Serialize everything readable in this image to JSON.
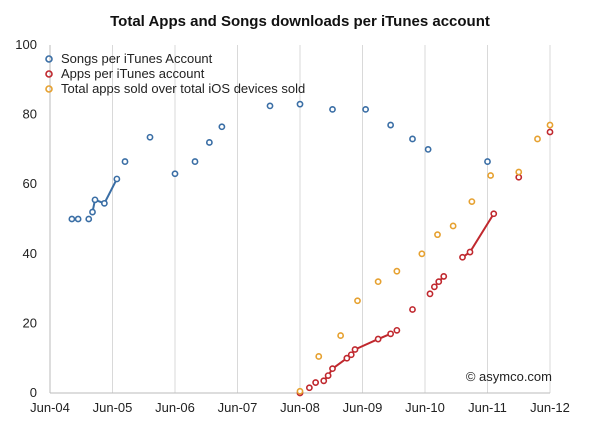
{
  "chart_data": {
    "type": "scatter",
    "title": "Total Apps and Songs downloads per iTunes account",
    "xlabel": "",
    "ylabel": "",
    "ylim": [
      0,
      100
    ],
    "yticks": [
      "0",
      "20",
      "40",
      "60",
      "80",
      "100"
    ],
    "xticks": [
      "Jun-04",
      "Jun-05",
      "Jun-06",
      "Jun-07",
      "Jun-08",
      "Jun-09",
      "Jun-10",
      "Jun-11",
      "Jun-12"
    ],
    "xlim": [
      2004.0,
      2012.0
    ],
    "grid": "vertical",
    "legend_position": "top-left",
    "annotation": "© asymco.com",
    "series": [
      {
        "name": "Songs per iTunes Account",
        "color": "#3a6ea5",
        "connected_segments": [
          [
            3,
            6
          ]
        ],
        "points": [
          [
            2004.35,
            50
          ],
          [
            2004.45,
            50
          ],
          [
            2004.62,
            50
          ],
          [
            2004.68,
            52
          ],
          [
            2004.72,
            55.5
          ],
          [
            2004.87,
            54.5
          ],
          [
            2005.07,
            61.5
          ],
          [
            2005.2,
            66.5
          ],
          [
            2005.6,
            73.5
          ],
          [
            2006.0,
            63
          ],
          [
            2006.32,
            66.5
          ],
          [
            2006.55,
            72
          ],
          [
            2006.75,
            76.5
          ],
          [
            2007.52,
            82.5
          ],
          [
            2008.0,
            83
          ],
          [
            2008.52,
            81.5
          ],
          [
            2009.05,
            81.5
          ],
          [
            2009.45,
            77
          ],
          [
            2009.8,
            73
          ],
          [
            2010.05,
            70
          ],
          [
            2011.0,
            66.5
          ]
        ]
      },
      {
        "name": "Apps per iTunes account",
        "color": "#c0282e",
        "connected_segments": [
          [
            3,
            6
          ],
          [
            8,
            10
          ],
          [
            14,
            16
          ],
          [
            17,
            19
          ]
        ],
        "points": [
          [
            2008.0,
            0
          ],
          [
            2008.15,
            1.5
          ],
          [
            2008.25,
            3
          ],
          [
            2008.38,
            3.5
          ],
          [
            2008.45,
            5
          ],
          [
            2008.52,
            7
          ],
          [
            2008.75,
            10
          ],
          [
            2008.82,
            11
          ],
          [
            2008.88,
            12.5
          ],
          [
            2009.25,
            15.5
          ],
          [
            2009.45,
            17
          ],
          [
            2009.55,
            18
          ],
          [
            2009.8,
            24
          ],
          [
            2010.08,
            28.5
          ],
          [
            2010.15,
            30.5
          ],
          [
            2010.22,
            32
          ],
          [
            2010.3,
            33.5
          ],
          [
            2010.6,
            39
          ],
          [
            2010.72,
            40.5
          ],
          [
            2011.1,
            51.5
          ],
          [
            2011.5,
            62
          ],
          [
            2012.0,
            75
          ]
        ]
      },
      {
        "name": "Total apps sold over total iOS devices sold",
        "color": "#e6a130",
        "connected_segments": [],
        "points": [
          [
            2008.0,
            0.5
          ],
          [
            2008.3,
            10.5
          ],
          [
            2008.65,
            16.5
          ],
          [
            2008.92,
            26.5
          ],
          [
            2009.25,
            32
          ],
          [
            2009.55,
            35
          ],
          [
            2009.95,
            40
          ],
          [
            2010.2,
            45.5
          ],
          [
            2010.45,
            48
          ],
          [
            2010.75,
            55
          ],
          [
            2011.05,
            62.5
          ],
          [
            2011.5,
            63.5
          ],
          [
            2011.8,
            73
          ],
          [
            2012.0,
            77
          ]
        ]
      }
    ]
  }
}
